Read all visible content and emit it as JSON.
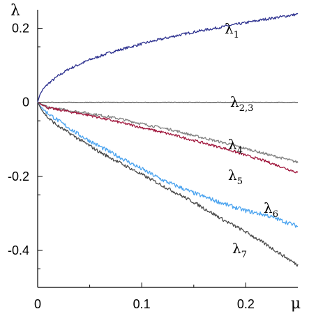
{
  "chart_data": {
    "type": "line",
    "title": "",
    "xlabel": "μ",
    "ylabel": "λ",
    "xlim": [
      0,
      0.25
    ],
    "ylim": [
      -0.5,
      0.25
    ],
    "x_ticks": [
      0,
      0.1,
      0.2
    ],
    "x_tick_labels": [
      "0",
      "0.1",
      "0.2"
    ],
    "y_ticks": [
      0.2,
      0,
      -0.2,
      -0.4
    ],
    "y_tick_labels": [
      "0.2",
      "0",
      "-0.2",
      "-0.4"
    ],
    "grid": false,
    "legend": "none",
    "series": [
      {
        "name": "λ1",
        "label_main": "λ",
        "label_sub": "1",
        "color": "#2b2f8e",
        "x": [
          0,
          0.002,
          0.005,
          0.01,
          0.02,
          0.03,
          0.05,
          0.07,
          0.1,
          0.13,
          0.15,
          0.18,
          0.2,
          0.22,
          0.25
        ],
        "y": [
          0,
          0.02,
          0.035,
          0.05,
          0.072,
          0.09,
          0.115,
          0.135,
          0.158,
          0.178,
          0.19,
          0.205,
          0.215,
          0.225,
          0.238
        ]
      },
      {
        "name": "λ2,3",
        "label_main": "λ",
        "label_sub": "2,3",
        "color": "#555555",
        "x": [
          0,
          0.05,
          0.1,
          0.15,
          0.2,
          0.25
        ],
        "y": [
          0,
          0,
          0,
          0,
          0,
          0
        ]
      },
      {
        "name": "λ4",
        "label_main": "λ",
        "label_sub": "4",
        "color": "#808080",
        "x": [
          0,
          0.01,
          0.02,
          0.05,
          0.08,
          0.1,
          0.13,
          0.15,
          0.18,
          0.2,
          0.22,
          0.25
        ],
        "y": [
          0,
          -0.014,
          -0.018,
          -0.03,
          -0.045,
          -0.058,
          -0.075,
          -0.09,
          -0.11,
          -0.125,
          -0.14,
          -0.162
        ]
      },
      {
        "name": "λ5",
        "label_main": "λ",
        "label_sub": "5",
        "color": "#a0163c",
        "x": [
          0,
          0.01,
          0.02,
          0.05,
          0.08,
          0.1,
          0.13,
          0.15,
          0.18,
          0.2,
          0.22,
          0.25
        ],
        "y": [
          0,
          -0.015,
          -0.02,
          -0.035,
          -0.055,
          -0.068,
          -0.088,
          -0.103,
          -0.125,
          -0.143,
          -0.16,
          -0.19
        ]
      },
      {
        "name": "λ6",
        "label_main": "λ",
        "label_sub": "6",
        "color": "#4aa3ef",
        "x": [
          0,
          0.005,
          0.01,
          0.02,
          0.04,
          0.06,
          0.08,
          0.1,
          0.12,
          0.15,
          0.18,
          0.2,
          0.22,
          0.25
        ],
        "y": [
          0,
          -0.018,
          -0.03,
          -0.05,
          -0.088,
          -0.12,
          -0.15,
          -0.18,
          -0.21,
          -0.245,
          -0.275,
          -0.293,
          -0.305,
          -0.335
        ]
      },
      {
        "name": "λ7",
        "label_main": "λ",
        "label_sub": "7",
        "color": "#4a4a4a",
        "x": [
          0,
          0.005,
          0.01,
          0.02,
          0.04,
          0.06,
          0.08,
          0.1,
          0.12,
          0.15,
          0.18,
          0.2,
          0.22,
          0.25
        ],
        "y": [
          0,
          -0.025,
          -0.042,
          -0.065,
          -0.1,
          -0.135,
          -0.165,
          -0.195,
          -0.225,
          -0.27,
          -0.32,
          -0.35,
          -0.385,
          -0.44
        ]
      }
    ]
  }
}
